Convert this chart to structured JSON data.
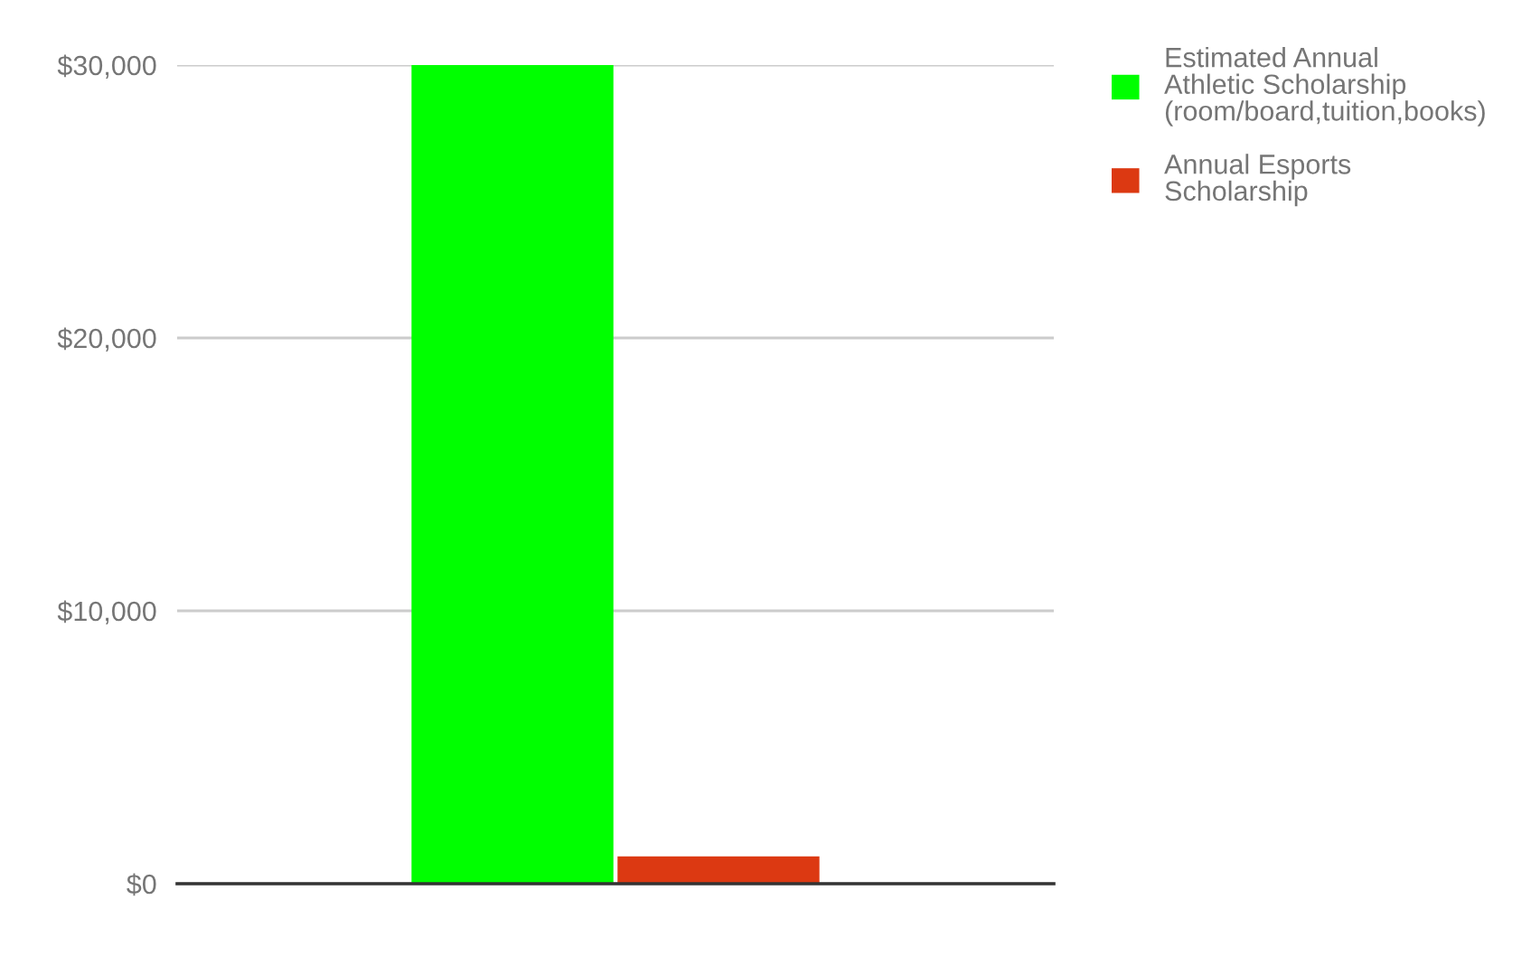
{
  "chart_data": {
    "type": "bar",
    "categories": [
      null
    ],
    "series": [
      {
        "name": "Estimated Annual Athletic Scholarship (room/board,tuition,books)",
        "color": "#00ff00",
        "values": [
          30000
        ]
      },
      {
        "name": "Annual Esports Scholarship",
        "color": "#dc3912",
        "values": [
          1000
        ]
      }
    ],
    "ylim": [
      0,
      30000
    ],
    "yticks": [
      {
        "value": 0,
        "label": "$0"
      },
      {
        "value": 10000,
        "label": "$10,000"
      },
      {
        "value": 20000,
        "label": "$20,000"
      },
      {
        "value": 30000,
        "label": "$30,000"
      }
    ],
    "grid": "y",
    "legend": "top right",
    "tick_labels": "y"
  }
}
